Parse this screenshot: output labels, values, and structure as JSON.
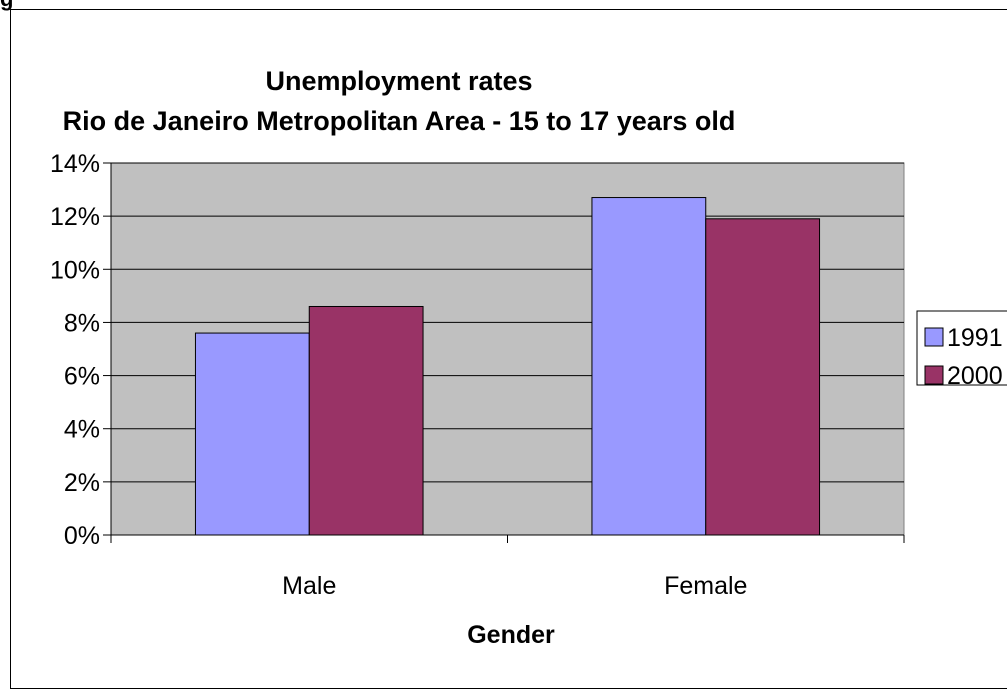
{
  "figure_letter": "g",
  "chart_data": {
    "type": "bar",
    "title": [
      "Unemployment rates",
      "Rio de Janeiro Metropolitan Area - 15 to 17 years old"
    ],
    "xlabel": "Gender",
    "ylabel": "",
    "categories": [
      "Male",
      "Female"
    ],
    "series": [
      {
        "name": "1991",
        "values": [
          7.6,
          12.7
        ],
        "color": "#9999ff"
      },
      {
        "name": "2000",
        "values": [
          8.6,
          11.9
        ],
        "color": "#993366"
      }
    ],
    "ylim": [
      0,
      14
    ],
    "yticks": [
      0,
      2,
      4,
      6,
      8,
      10,
      12,
      14
    ],
    "ytick_suffix": "%",
    "plot_background": "#c0c0c0",
    "grid": true,
    "legend_position": "right"
  }
}
